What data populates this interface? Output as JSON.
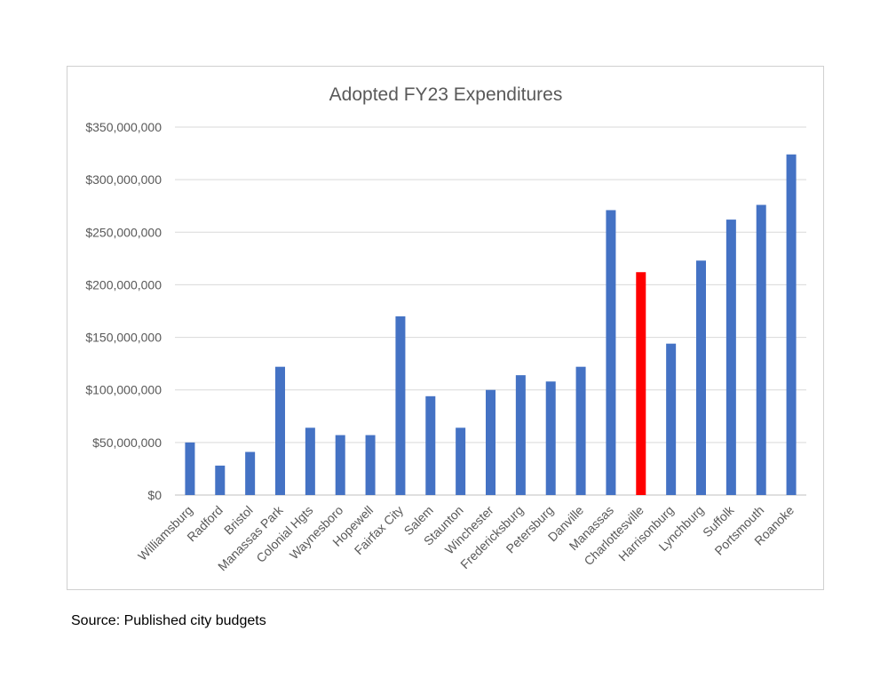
{
  "source_note": "Source: Published city budgets",
  "colors": {
    "bar": "#4472C4",
    "highlight": "#FF0000",
    "grid": "#D9D9D9",
    "text": "#595959"
  },
  "chart_data": {
    "type": "bar",
    "title": "Adopted FY23 Expenditures",
    "xlabel": "",
    "ylabel": "",
    "ylim": [
      0,
      350000000
    ],
    "yticks": [
      0,
      50000000,
      100000000,
      150000000,
      200000000,
      250000000,
      300000000,
      350000000
    ],
    "ytick_labels": [
      "$0",
      "$50,000,000",
      "$100,000,000",
      "$150,000,000",
      "$200,000,000",
      "$250,000,000",
      "$300,000,000",
      "$350,000,000"
    ],
    "grid": true,
    "legend": "none",
    "highlight_category": "Charlottesville",
    "categories": [
      "Williamsburg",
      "Radford",
      "Bristol",
      "Manassas Park",
      "Colonial Hgts",
      "Waynesboro",
      "Hopewell",
      "Fairfax City",
      "Salem",
      "Staunton",
      "Winchester",
      "Fredericksburg",
      "Petersburg",
      "Danville",
      "Manassas",
      "Charlottesville",
      "Harrisonburg",
      "Lynchburg",
      "Suffolk",
      "Portsmouth",
      "Roanoke"
    ],
    "values": [
      50000000,
      28000000,
      41000000,
      122000000,
      64000000,
      57000000,
      57000000,
      170000000,
      94000000,
      64000000,
      100000000,
      114000000,
      108000000,
      122000000,
      271000000,
      212000000,
      144000000,
      223000000,
      262000000,
      276000000,
      324000000
    ]
  }
}
